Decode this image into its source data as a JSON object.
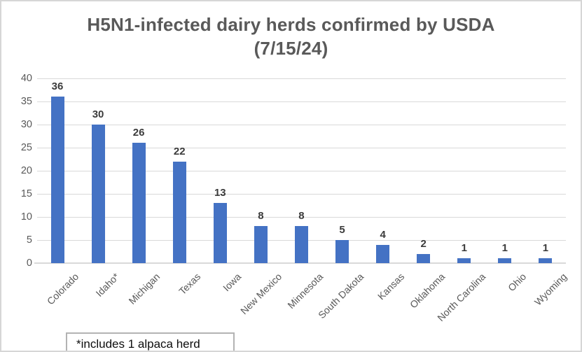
{
  "chart_data": {
    "type": "bar",
    "title": "H5N1-infected dairy herds confirmed by USDA (7/15/24)",
    "title_lines": [
      "H5N1-infected dairy herds confirmed by USDA",
      "(7/15/24)"
    ],
    "categories": [
      "Colorado",
      "Idaho*",
      "Michigan",
      "Texas",
      "Iowa",
      "New Mexico",
      "Minnesota",
      "South Dakota",
      "Kansas",
      "Oklahoma",
      "North Carolina",
      "Ohio",
      "Wyoming"
    ],
    "values": [
      36,
      30,
      26,
      22,
      13,
      8,
      8,
      5,
      4,
      2,
      1,
      1,
      1
    ],
    "xlabel": "",
    "ylabel": "",
    "ylim": [
      0,
      40
    ],
    "yticks": [
      0,
      5,
      10,
      15,
      20,
      25,
      30,
      35,
      40
    ],
    "grid": true,
    "legend": false,
    "data_labels": true,
    "annotation": "*includes 1 alpaca herd",
    "colors": {
      "bar": "#4472c4",
      "gridline": "#d9d9d9",
      "title_text": "#595959",
      "axis_text": "#595959",
      "data_label_text": "#3b3b3b",
      "annotation_text": "#0d0d0d",
      "annotation_border": "#b3b3b3"
    }
  }
}
